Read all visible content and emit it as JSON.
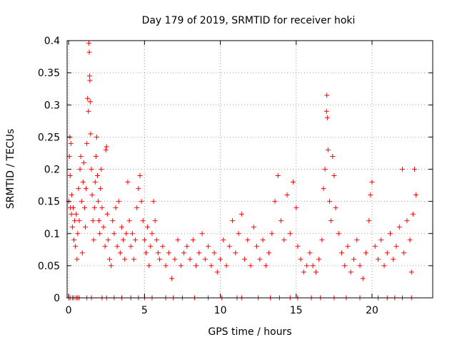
{
  "chart_data": {
    "type": "scatter",
    "title": "Day 179 of 2019, SRMTID for receiver hoki",
    "xlabel": "GPS time / hours",
    "ylabel": "SRMTID / TECUs",
    "xlim": [
      -0.1,
      24
    ],
    "ylim": [
      0,
      0.4
    ],
    "xticks": [
      0,
      5,
      10,
      15,
      20
    ],
    "xtick_labels": [
      "0",
      "5",
      "10",
      "15",
      "20"
    ],
    "yticks": [
      0,
      0.05,
      0.1,
      0.15,
      0.2,
      0.25,
      0.3,
      0.35,
      0.4
    ],
    "ytick_labels": [
      "0",
      "0.05",
      "0.1",
      "0.15",
      "0.2",
      "0.25",
      "0.3",
      "0.35",
      "0.4"
    ],
    "grid": true,
    "marker": "+",
    "color": "#ff0000",
    "series": [
      {
        "name": "SRMTID",
        "points": [
          [
            0.0,
            0.15
          ],
          [
            0.05,
            0.22
          ],
          [
            0.08,
            0.25
          ],
          [
            0.1,
            0.19
          ],
          [
            0.12,
            0.14
          ],
          [
            0.15,
            0.24
          ],
          [
            0.18,
            0.13
          ],
          [
            0.2,
            0.16
          ],
          [
            0.25,
            0.11
          ],
          [
            0.3,
            0.14
          ],
          [
            0.35,
            0.09
          ],
          [
            0.4,
            0.12
          ],
          [
            0.45,
            0.08
          ],
          [
            0.5,
            0.13
          ],
          [
            0.55,
            0.06
          ],
          [
            0.6,
            0.1
          ],
          [
            0.65,
            0.17
          ],
          [
            0.7,
            0.12
          ],
          [
            0.75,
            0.2
          ],
          [
            0.8,
            0.22
          ],
          [
            0.85,
            0.15
          ],
          [
            0.9,
            0.07
          ],
          [
            0.95,
            0.18
          ],
          [
            1.0,
            0.21
          ],
          [
            1.05,
            0.14
          ],
          [
            1.1,
            0.11
          ],
          [
            1.15,
            0.17
          ],
          [
            1.2,
            0.24
          ],
          [
            1.25,
            0.31
          ],
          [
            1.3,
            0.29
          ],
          [
            1.33,
            0.396
          ],
          [
            1.36,
            0.382
          ],
          [
            1.38,
            0.345
          ],
          [
            1.4,
            0.338
          ],
          [
            1.42,
            0.305
          ],
          [
            1.45,
            0.255
          ],
          [
            1.5,
            0.2
          ],
          [
            1.55,
            0.16
          ],
          [
            1.6,
            0.12
          ],
          [
            1.65,
            0.09
          ],
          [
            1.7,
            0.14
          ],
          [
            1.75,
            0.18
          ],
          [
            1.8,
            0.22
          ],
          [
            1.85,
            0.25
          ],
          [
            1.9,
            0.19
          ],
          [
            1.95,
            0.15
          ],
          [
            2.0,
            0.12
          ],
          [
            2.05,
            0.1
          ],
          [
            2.1,
            0.17
          ],
          [
            2.15,
            0.2
          ],
          [
            2.2,
            0.14
          ],
          [
            2.3,
            0.11
          ],
          [
            2.4,
            0.08
          ],
          [
            2.45,
            0.23
          ],
          [
            2.5,
            0.235
          ],
          [
            2.55,
            0.13
          ],
          [
            2.6,
            0.09
          ],
          [
            2.7,
            0.06
          ],
          [
            2.8,
            0.05
          ],
          [
            2.9,
            0.12
          ],
          [
            3.0,
            0.1
          ],
          [
            3.1,
            0.14
          ],
          [
            3.2,
            0.08
          ],
          [
            3.3,
            0.15
          ],
          [
            3.4,
            0.07
          ],
          [
            3.5,
            0.11
          ],
          [
            3.6,
            0.09
          ],
          [
            3.7,
            0.06
          ],
          [
            3.8,
            0.1
          ],
          [
            3.9,
            0.18
          ],
          [
            4.0,
            0.12
          ],
          [
            4.1,
            0.08
          ],
          [
            4.2,
            0.1
          ],
          [
            4.3,
            0.06
          ],
          [
            4.4,
            0.09
          ],
          [
            4.5,
            0.14
          ],
          [
            4.6,
            0.17
          ],
          [
            4.7,
            0.19
          ],
          [
            4.8,
            0.15
          ],
          [
            4.9,
            0.12
          ],
          [
            5.0,
            0.09
          ],
          [
            5.1,
            0.07
          ],
          [
            5.2,
            0.11
          ],
          [
            5.3,
            0.05
          ],
          [
            5.4,
            0.08
          ],
          [
            5.5,
            0.1
          ],
          [
            5.6,
            0.15
          ],
          [
            5.7,
            0.12
          ],
          [
            5.8,
            0.09
          ],
          [
            5.9,
            0.07
          ],
          [
            6.0,
            0.06
          ],
          [
            6.2,
            0.08
          ],
          [
            6.4,
            0.05
          ],
          [
            6.6,
            0.07
          ],
          [
            6.8,
            0.03
          ],
          [
            7.0,
            0.06
          ],
          [
            7.2,
            0.09
          ],
          [
            7.4,
            0.05
          ],
          [
            7.6,
            0.07
          ],
          [
            7.8,
            0.08
          ],
          [
            8.0,
            0.06
          ],
          [
            8.2,
            0.09
          ],
          [
            8.4,
            0.05
          ],
          [
            8.6,
            0.07
          ],
          [
            8.8,
            0.1
          ],
          [
            9.0,
            0.06
          ],
          [
            9.2,
            0.08
          ],
          [
            9.4,
            0.05
          ],
          [
            9.6,
            0.07
          ],
          [
            9.8,
            0.04
          ],
          [
            10.0,
            0.06
          ],
          [
            10.2,
            0.09
          ],
          [
            10.4,
            0.05
          ],
          [
            10.6,
            0.08
          ],
          [
            10.8,
            0.12
          ],
          [
            11.0,
            0.07
          ],
          [
            11.2,
            0.1
          ],
          [
            11.4,
            0.13
          ],
          [
            11.6,
            0.06
          ],
          [
            11.8,
            0.09
          ],
          [
            12.0,
            0.05
          ],
          [
            12.2,
            0.11
          ],
          [
            12.4,
            0.08
          ],
          [
            12.6,
            0.06
          ],
          [
            12.8,
            0.09
          ],
          [
            13.0,
            0.05
          ],
          [
            13.2,
            0.07
          ],
          [
            13.4,
            0.1
          ],
          [
            13.6,
            0.15
          ],
          [
            13.8,
            0.19
          ],
          [
            14.0,
            0.12
          ],
          [
            14.2,
            0.09
          ],
          [
            14.4,
            0.16
          ],
          [
            14.6,
            0.1
          ],
          [
            14.8,
            0.18
          ],
          [
            15.0,
            0.14
          ],
          [
            15.1,
            0.08
          ],
          [
            15.3,
            0.06
          ],
          [
            15.5,
            0.04
          ],
          [
            15.7,
            0.05
          ],
          [
            15.9,
            0.07
          ],
          [
            16.1,
            0.05
          ],
          [
            16.3,
            0.04
          ],
          [
            16.5,
            0.06
          ],
          [
            16.7,
            0.09
          ],
          [
            16.8,
            0.17
          ],
          [
            16.9,
            0.2
          ],
          [
            17.0,
            0.29
          ],
          [
            17.02,
            0.315
          ],
          [
            17.05,
            0.28
          ],
          [
            17.1,
            0.23
          ],
          [
            17.2,
            0.15
          ],
          [
            17.3,
            0.12
          ],
          [
            17.4,
            0.22
          ],
          [
            17.5,
            0.19
          ],
          [
            17.6,
            0.14
          ],
          [
            17.8,
            0.1
          ],
          [
            18.0,
            0.07
          ],
          [
            18.2,
            0.05
          ],
          [
            18.4,
            0.08
          ],
          [
            18.6,
            0.04
          ],
          [
            18.8,
            0.06
          ],
          [
            19.0,
            0.09
          ],
          [
            19.2,
            0.05
          ],
          [
            19.4,
            0.03
          ],
          [
            19.6,
            0.07
          ],
          [
            19.8,
            0.12
          ],
          [
            19.9,
            0.16
          ],
          [
            20.0,
            0.18
          ],
          [
            20.2,
            0.08
          ],
          [
            20.4,
            0.06
          ],
          [
            20.6,
            0.09
          ],
          [
            20.8,
            0.05
          ],
          [
            21.0,
            0.07
          ],
          [
            21.2,
            0.1
          ],
          [
            21.4,
            0.06
          ],
          [
            21.6,
            0.08
          ],
          [
            21.8,
            0.11
          ],
          [
            22.0,
            0.2
          ],
          [
            22.1,
            0.07
          ],
          [
            22.3,
            0.12
          ],
          [
            22.5,
            0.09
          ],
          [
            22.6,
            0.04
          ],
          [
            22.7,
            0.13
          ],
          [
            22.8,
            0.2
          ],
          [
            22.9,
            0.16
          ]
        ],
        "zero_points": [
          0.0,
          0.1,
          0.25,
          0.35,
          0.5,
          0.6,
          0.7,
          1.2,
          1.5,
          2.2,
          2.5,
          3.0,
          3.5,
          4.1,
          4.6,
          5.0,
          5.5,
          6.4,
          6.9,
          7.5,
          8.3,
          9.2,
          10.1,
          11.1,
          11.4,
          12.5,
          13.3,
          13.9,
          14.6,
          15.1,
          16.0,
          16.6,
          17.5,
          18.3,
          19.2,
          20.4,
          21.0,
          21.5,
          22.0,
          22.6
        ]
      }
    ]
  }
}
